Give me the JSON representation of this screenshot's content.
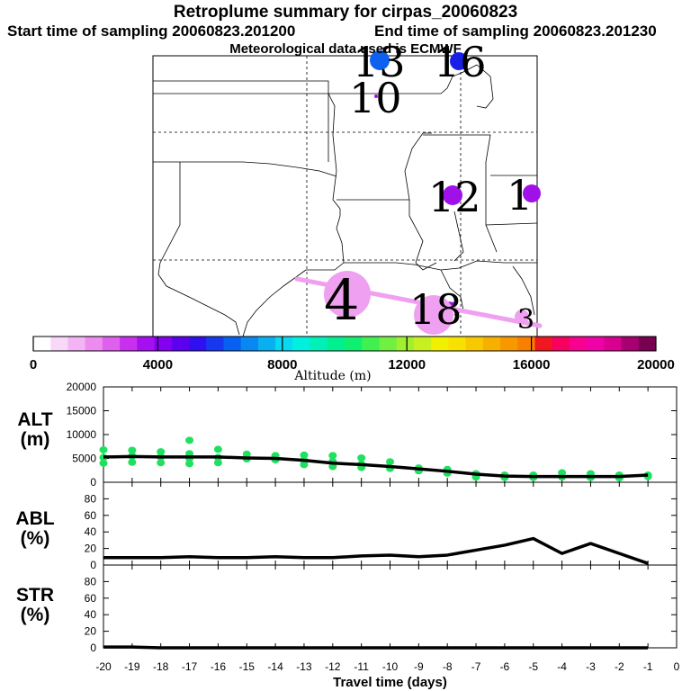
{
  "header": {
    "title": "Retroplume summary for cirpas_20060823",
    "start_time": "Start time of sampling 20060823.201200",
    "end_time": "End time of sampling 20060823.201230",
    "met_note": "Meteorological data used is ECMWF"
  },
  "colorbar": {
    "title": "Altitude (m)",
    "ticks": [
      0,
      4000,
      8000,
      12000,
      16000,
      20000
    ],
    "colors": [
      "#ffffff",
      "#f8d8f8",
      "#f2b4f4",
      "#ec8cf0",
      "#e060ee",
      "#c830ee",
      "#a410f0",
      "#8400f0",
      "#5c00f0",
      "#3010f0",
      "#1838f0",
      "#0860f0",
      "#0888f0",
      "#08b0f0",
      "#08d8f0",
      "#00f0e0",
      "#00f0b8",
      "#00f090",
      "#10f070",
      "#40f050",
      "#70f040",
      "#a0f030",
      "#c8f020",
      "#f0f000",
      "#f8e000",
      "#f8c800",
      "#f8b000",
      "#f89800",
      "#f88000",
      "#f01820",
      "#f80060",
      "#f80090",
      "#f000a8",
      "#d80090",
      "#a80070",
      "#780050"
    ],
    "range": [
      0,
      20000
    ]
  },
  "map": {
    "plume_points": [
      {
        "label": "13",
        "color": "#1060f0",
        "size": 11
      },
      {
        "label": "16",
        "color": "#1820e8",
        "size": 10
      },
      {
        "label": "10",
        "color": "#a010e8",
        "size": 2
      },
      {
        "label": "12",
        "color": "#a010e8",
        "size": 11
      },
      {
        "label": "1",
        "color": "#a010e8",
        "size": 10
      },
      {
        "label": "4",
        "color": "#f0a0f0",
        "size": 26
      },
      {
        "label": "18",
        "color": "#f0a0f0",
        "size": 22
      },
      {
        "label": "3",
        "color": "#f0a0f0",
        "size": 8
      }
    ]
  },
  "chart_data": [
    {
      "type": "scatter",
      "panel": "ALT",
      "ylabel": "ALT\n(m)",
      "ylim": [
        0,
        20000
      ],
      "yticks": [
        0,
        5000,
        10000,
        15000,
        20000
      ],
      "xlim": [
        -20,
        0
      ],
      "median_line": {
        "x": [
          -20,
          -19,
          -18,
          -17,
          -16,
          -15,
          -14,
          -13,
          -12,
          -11,
          -10,
          -9,
          -8,
          -7,
          -6,
          -5,
          -4,
          -3,
          -2,
          -1
        ],
        "y": [
          5300,
          5400,
          5300,
          5300,
          5300,
          5100,
          5000,
          4600,
          4000,
          3700,
          3300,
          2800,
          2300,
          1700,
          1300,
          1200,
          1200,
          1200,
          1200,
          1500
        ]
      },
      "scatter_color": "#20e060",
      "points": {
        "x": [
          -20,
          -20,
          -20,
          -19,
          -19,
          -19,
          -18,
          -18,
          -18,
          -17,
          -17,
          -17,
          -17,
          -16,
          -16,
          -16,
          -15,
          -15,
          -14,
          -14,
          -13,
          -13,
          -13,
          -12,
          -12,
          -12,
          -11,
          -11,
          -11,
          -10,
          -10,
          -9,
          -9,
          -8,
          -8,
          -7,
          -7,
          -6,
          -6,
          -5,
          -5,
          -4,
          -4,
          -3,
          -3,
          -2,
          -2,
          -1,
          -1
        ],
        "y": [
          6800,
          5200,
          4000,
          6700,
          5500,
          4200,
          6400,
          5300,
          4100,
          8800,
          6000,
          5000,
          3900,
          6900,
          5200,
          4100,
          5900,
          4900,
          5600,
          4700,
          5700,
          4600,
          3700,
          5600,
          4400,
          3300,
          5100,
          3800,
          3100,
          4300,
          2900,
          3000,
          2400,
          2700,
          1900,
          1800,
          1100,
          1500,
          1000,
          1500,
          1000,
          2000,
          1100,
          1800,
          1000,
          1500,
          900,
          1500,
          1200
        ]
      }
    },
    {
      "type": "line",
      "panel": "ABL",
      "ylabel": "ABL\n(%)",
      "ylim": [
        0,
        100
      ],
      "yticks": [
        0,
        20,
        40,
        60,
        80
      ],
      "xlim": [
        -20,
        0
      ],
      "x": [
        -20,
        -19,
        -18,
        -17,
        -16,
        -15,
        -14,
        -13,
        -12,
        -11,
        -10,
        -9,
        -8,
        -7,
        -6,
        -5,
        -4,
        -3,
        -2,
        -1
      ],
      "y": [
        9,
        9,
        9,
        10,
        9,
        9,
        10,
        9,
        9,
        11,
        12,
        10,
        12,
        18,
        24,
        32,
        14,
        26,
        14,
        2
      ]
    },
    {
      "type": "line",
      "panel": "STR",
      "ylabel": "STR\n(%)",
      "ylim": [
        0,
        100
      ],
      "yticks": [
        0,
        20,
        40,
        60,
        80
      ],
      "xlim": [
        -20,
        0
      ],
      "x": [
        -20,
        -19,
        -18,
        -17,
        -16,
        -15,
        -14,
        -13,
        -12,
        -11,
        -10,
        -9,
        -8,
        -7,
        -6,
        -5,
        -4,
        -3,
        -2,
        -1
      ],
      "y": [
        1,
        1,
        0,
        0,
        0,
        0,
        0,
        0,
        0,
        0,
        0,
        0,
        0,
        0,
        0,
        0,
        0,
        0,
        0,
        0
      ]
    }
  ],
  "xaxis": {
    "title": "Travel time (days)",
    "ticks": [
      -20,
      -19,
      -18,
      -17,
      -16,
      -15,
      -14,
      -13,
      -12,
      -11,
      -10,
      -9,
      -8,
      -7,
      -6,
      -5,
      -4,
      -3,
      -2,
      -1,
      0
    ]
  }
}
